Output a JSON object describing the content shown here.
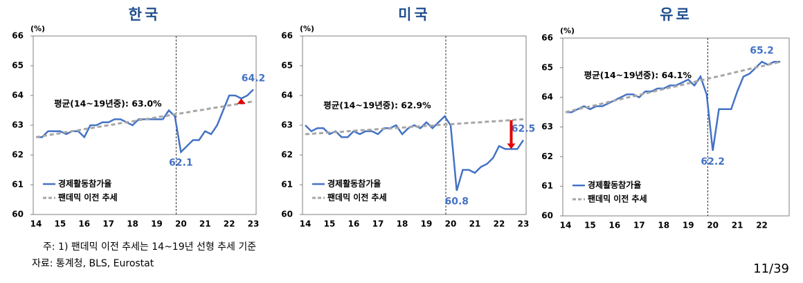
{
  "chart_data": [
    {
      "type": "line",
      "title": "한국",
      "y_unit": "(%)",
      "annotation": "평균(14~19년중): 63.0%",
      "gap_arrow": true,
      "categories": [
        "14",
        null,
        null,
        null,
        "15",
        null,
        null,
        null,
        "16",
        null,
        null,
        null,
        "17",
        null,
        null,
        null,
        "18",
        null,
        null,
        null,
        "19",
        null,
        null,
        null,
        "20",
        null,
        null,
        null,
        "21",
        null,
        null,
        null,
        "22",
        null,
        null,
        null,
        "23"
      ],
      "ylim": [
        60,
        66
      ],
      "yticks": [
        60,
        61,
        62,
        63,
        64,
        65,
        66
      ],
      "series": [
        {
          "name": "경제활동참가율",
          "color": "#4472c4",
          "values": [
            62.6,
            62.6,
            62.8,
            62.8,
            62.8,
            62.7,
            62.8,
            62.8,
            62.6,
            63.0,
            63.0,
            63.1,
            63.1,
            63.2,
            63.2,
            63.1,
            63.0,
            63.2,
            63.2,
            63.2,
            63.2,
            63.2,
            63.5,
            63.3,
            62.1,
            62.3,
            62.5,
            62.5,
            62.8,
            62.7,
            63.0,
            63.5,
            64.0,
            64.0,
            63.9,
            64.0,
            64.2
          ],
          "value_labels": [
            null,
            null,
            null,
            null,
            null,
            null,
            null,
            null,
            null,
            null,
            null,
            null,
            null,
            null,
            null,
            null,
            null,
            null,
            null,
            null,
            null,
            null,
            null,
            null,
            "62.1",
            null,
            null,
            null,
            null,
            null,
            null,
            null,
            null,
            null,
            null,
            null,
            "64.2"
          ]
        },
        {
          "name": "팬데믹 이전 추세",
          "color": "#a6a6a6",
          "dashed": true,
          "values": [
            62.6,
            62.63,
            62.67,
            62.7,
            62.73,
            62.77,
            62.8,
            62.83,
            62.87,
            62.9,
            62.93,
            62.97,
            63.0,
            63.03,
            63.07,
            63.1,
            63.13,
            63.17,
            63.2,
            63.23,
            63.27,
            63.3,
            63.33,
            63.37,
            63.4,
            63.43,
            63.47,
            63.5,
            63.53,
            63.57,
            63.6,
            63.63,
            63.67,
            63.7,
            63.73,
            63.77,
            63.8
          ]
        }
      ]
    },
    {
      "type": "line",
      "title": "미국",
      "y_unit": "(%)",
      "annotation": "평균(14~19년중): 62.9%",
      "gap_arrow": true,
      "categories": [
        "14",
        null,
        null,
        null,
        "15",
        null,
        null,
        null,
        "16",
        null,
        null,
        null,
        "17",
        null,
        null,
        null,
        "18",
        null,
        null,
        null,
        "19",
        null,
        null,
        null,
        "20",
        null,
        null,
        null,
        "21",
        null,
        null,
        null,
        "22",
        null,
        null,
        null,
        "23"
      ],
      "ylim": [
        60,
        66
      ],
      "yticks": [
        60,
        61,
        62,
        63,
        64,
        65,
        66
      ],
      "series": [
        {
          "name": "경제활동참가율",
          "color": "#4472c4",
          "values": [
            63.0,
            62.8,
            62.9,
            62.9,
            62.7,
            62.8,
            62.6,
            62.6,
            62.8,
            62.7,
            62.8,
            62.8,
            62.7,
            62.9,
            62.9,
            63.0,
            62.7,
            62.9,
            63.0,
            62.9,
            63.1,
            62.9,
            63.1,
            63.3,
            63.0,
            60.8,
            61.5,
            61.5,
            61.4,
            61.6,
            61.7,
            61.9,
            62.3,
            62.2,
            62.2,
            62.2,
            62.5
          ],
          "value_labels": [
            null,
            null,
            null,
            null,
            null,
            null,
            null,
            null,
            null,
            null,
            null,
            null,
            null,
            null,
            null,
            null,
            null,
            null,
            null,
            null,
            null,
            null,
            null,
            null,
            null,
            "60.8",
            null,
            null,
            null,
            null,
            null,
            null,
            null,
            null,
            null,
            null,
            "62.5"
          ]
        },
        {
          "name": "팬데믹 이전 추세",
          "color": "#a6a6a6",
          "dashed": true,
          "values": [
            62.7,
            62.71,
            62.73,
            62.74,
            62.76,
            62.77,
            62.78,
            62.8,
            62.81,
            62.83,
            62.84,
            62.85,
            62.87,
            62.88,
            62.89,
            62.91,
            62.92,
            62.94,
            62.95,
            62.96,
            62.98,
            62.99,
            63.01,
            63.02,
            63.03,
            63.05,
            63.06,
            63.08,
            63.09,
            63.1,
            63.12,
            63.13,
            63.14,
            63.16,
            63.17,
            63.19,
            63.2
          ]
        }
      ]
    },
    {
      "type": "line",
      "title": "유로",
      "y_unit": "(%)",
      "annotation": "평균(14~19년중): 64.1%",
      "categories": [
        "14",
        null,
        null,
        null,
        "15",
        null,
        null,
        null,
        "16",
        null,
        null,
        null,
        "17",
        null,
        null,
        null,
        "18",
        null,
        null,
        null,
        "19",
        null,
        null,
        null,
        "20",
        null,
        null,
        null,
        "21",
        null,
        null,
        null,
        "22",
        null,
        null,
        null
      ],
      "ylim": [
        60,
        66
      ],
      "yticks": [
        60,
        61,
        62,
        63,
        64,
        65,
        66
      ],
      "series": [
        {
          "name": "경제활동참가율",
          "color": "#4472c4",
          "values": [
            63.5,
            63.5,
            63.6,
            63.7,
            63.6,
            63.7,
            63.7,
            63.8,
            63.9,
            64.0,
            64.1,
            64.1,
            64.0,
            64.2,
            64.2,
            64.3,
            64.3,
            64.4,
            64.4,
            64.5,
            64.6,
            64.4,
            64.7,
            64.1,
            62.2,
            63.6,
            63.6,
            63.6,
            64.2,
            64.7,
            64.8,
            65.0,
            65.2,
            65.1,
            65.2,
            65.2
          ],
          "value_labels": [
            null,
            null,
            null,
            null,
            null,
            null,
            null,
            null,
            null,
            null,
            null,
            null,
            null,
            null,
            null,
            null,
            null,
            null,
            null,
            null,
            null,
            null,
            null,
            null,
            "62.2",
            null,
            null,
            null,
            null,
            null,
            null,
            null,
            "65.2",
            null,
            null,
            null
          ]
        },
        {
          "name": "팬데믹 이전 추세",
          "color": "#a6a6a6",
          "dashed": true,
          "values": [
            63.5,
            63.55,
            63.6,
            63.65,
            63.69,
            63.74,
            63.79,
            63.84,
            63.89,
            63.94,
            63.99,
            64.03,
            64.08,
            64.13,
            64.18,
            64.23,
            64.28,
            64.33,
            64.37,
            64.42,
            64.47,
            64.52,
            64.57,
            64.62,
            64.67,
            64.71,
            64.76,
            64.81,
            64.86,
            64.91,
            64.96,
            65.01,
            65.05,
            65.1,
            65.15,
            65.2
          ]
        }
      ]
    }
  ],
  "footnote": "주:  1) 팬데믹 이전 추세는 14~19년 선형 추세 기준",
  "source": "자료: 통계청, BLS, Eurostat",
  "page_number": "11/39"
}
